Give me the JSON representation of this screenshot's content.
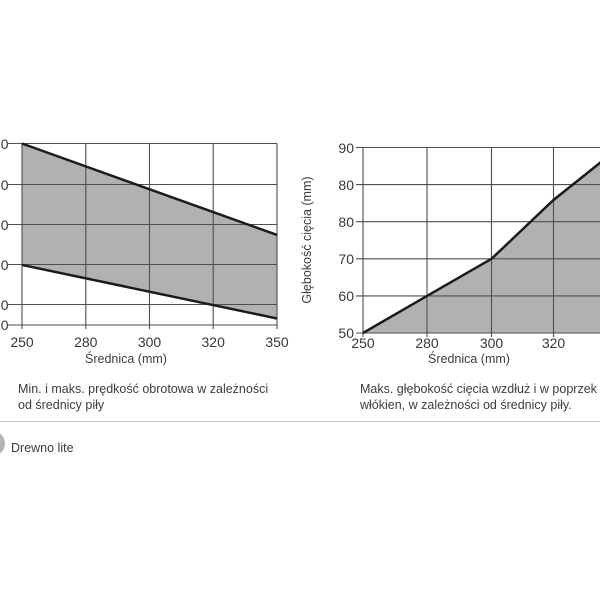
{
  "page": {
    "background": "#ffffff"
  },
  "colors": {
    "grid": "#4f4f4f",
    "data_line": "#1b1b1b",
    "area_fill": "#b1b1b3",
    "text": "#3d3d3d",
    "divider": "#c9c9c9",
    "footer_dot": "#b4b4b4"
  },
  "charts": {
    "left": {
      "x_axis_label": "Średnica (mm)",
      "x_tick_labels": [
        "250",
        "280",
        "300",
        "320",
        "350"
      ],
      "y_tick_labels": [
        "0",
        "0",
        "0",
        "0",
        "0",
        "0"
      ],
      "caption": [
        "Min. i maks. prędkość obrotowa w zależności",
        "od średnicy piły"
      ]
    },
    "right": {
      "x_axis_label": "Średnica (mm)",
      "y_axis_label": "Głębokość cięcia (mm)",
      "x_tick_labels": [
        "250",
        "280",
        "300",
        "320"
      ],
      "y_tick_labels": [
        "90",
        "80",
        "80",
        "70",
        "60",
        "50"
      ],
      "caption": [
        "Maks. głębokość cięcia wzdłuż i w poprzek",
        "włókien, w zależności od średnicy piły."
      ]
    }
  },
  "footer": {
    "material_label": "Drewno lite"
  },
  "chart_data": [
    {
      "id": "left-chart",
      "type": "area",
      "caption": "Min. i maks. prędkość obrotowa w zależności od średnicy piły",
      "xlabel": "Średnica (mm)",
      "x_tick_values": [
        250,
        280,
        300,
        320,
        350
      ],
      "x_ticks_equally_spaced": true,
      "y_tick_labels_visible": [
        "0",
        "0",
        "0",
        "0",
        "0",
        "0"
      ],
      "y_axis_note": "y-axis tick labels clipped by left edge of screenshot; only trailing zeros visible; bottom gridline gap is a half step",
      "grid": true,
      "band_between_series": true,
      "series": [
        {
          "name": "maks. prędkość obrotowa",
          "points_frac": [
            [
              0.0,
              0.0
            ],
            [
              1.0,
              0.504
            ]
          ]
        },
        {
          "name": "min. prędkość obrotowa",
          "points_frac": [
            [
              0.0,
              0.669
            ],
            [
              1.0,
              0.964
            ]
          ]
        }
      ]
    },
    {
      "id": "right-chart",
      "type": "area",
      "caption": "Maks. głębokość cięcia wzdłuż i w poprzek włókien, w zależności od średnicy piły.",
      "xlabel": "Średnica (mm)",
      "ylabel": "Głębokość cięcia (mm)",
      "x_tick_values": [
        250,
        280,
        300,
        320
      ],
      "y_tick_labels": [
        "90",
        "80",
        "80",
        "70",
        "60",
        "50"
      ],
      "ylim_shown": [
        50,
        90
      ],
      "grid": true,
      "fill_below": true,
      "clipped_right_edge": true,
      "series": [
        {
          "name": "maks. głębokość cięcia",
          "x": [
            250,
            280,
            300,
            320,
            347
          ],
          "depth_mm": [
            50,
            60,
            70,
            83,
            88
          ],
          "points_frac": [
            [
              0.0,
              1.0
            ],
            [
              0.253,
              0.8
            ],
            [
              0.508,
              0.6
            ],
            [
              0.753,
              0.283
            ],
            [
              1.0,
              0.014
            ]
          ]
        }
      ]
    }
  ]
}
